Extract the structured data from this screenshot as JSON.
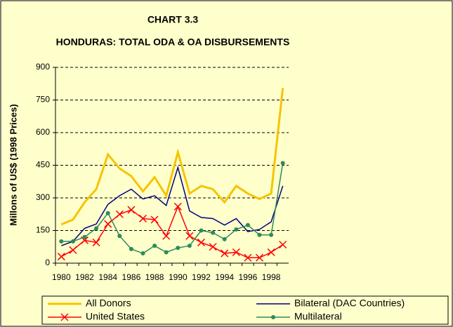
{
  "chart_data": {
    "type": "line",
    "title": "CHART 3.3",
    "subtitle": "HONDURAS: TOTAL ODA & OA DISBURSEMENTS",
    "y_label": "Millons of US$ (1998 Prices)",
    "categories": [
      "1980",
      null,
      "1982",
      null,
      "1984",
      null,
      "1986",
      null,
      "1988",
      null,
      "1990",
      null,
      "1992",
      null,
      "1994",
      null,
      "1996",
      null,
      "1998",
      null
    ],
    "series": [
      {
        "name": "All Donors",
        "color": "#f5c400",
        "marker": "none",
        "values": [
          178,
          200,
          280,
          340,
          500,
          435,
          400,
          330,
          395,
          310,
          510,
          320,
          355,
          340,
          280,
          355,
          320,
          295,
          320,
          805
        ]
      },
      {
        "name": "Bilateral (DAC Countries)",
        "color": "#000080",
        "marker": "none",
        "values": [
          80,
          100,
          160,
          180,
          270,
          310,
          340,
          295,
          310,
          265,
          440,
          240,
          210,
          205,
          175,
          205,
          145,
          155,
          190,
          355
        ]
      },
      {
        "name": "United States",
        "color": "#ff0000",
        "marker": "x",
        "values": [
          30,
          60,
          105,
          95,
          180,
          225,
          245,
          205,
          200,
          125,
          260,
          125,
          95,
          75,
          45,
          50,
          25,
          25,
          50,
          85
        ]
      },
      {
        "name": "Multilateral",
        "color": "#2e8b57",
        "marker": "dot",
        "values": [
          100,
          100,
          120,
          160,
          230,
          125,
          65,
          45,
          80,
          50,
          70,
          80,
          150,
          140,
          110,
          155,
          175,
          130,
          130,
          460
        ]
      }
    ],
    "ylim": [
      0,
      900
    ],
    "yticks": [
      0,
      150,
      300,
      450,
      600,
      750,
      900
    ],
    "grid": true
  }
}
